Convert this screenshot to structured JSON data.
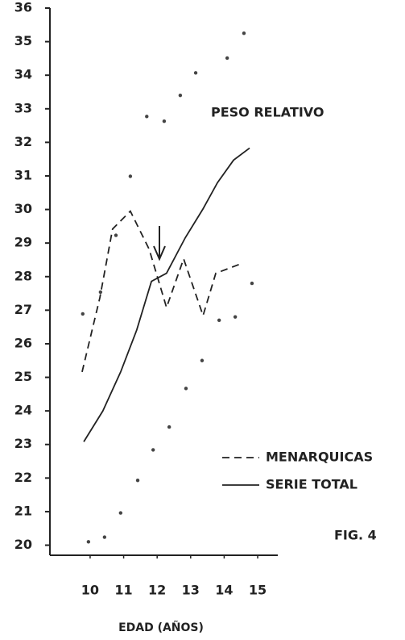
{
  "chart_data": {
    "type": "line",
    "annotation": "PESO RELATIVO",
    "figure_label": "FIG. 4",
    "xlabel": "EDAD (AÑOS)",
    "xlim": [
      8.8,
      15.6
    ],
    "xticks": [
      10,
      11,
      12,
      13,
      14,
      15
    ],
    "ylim": [
      19.7,
      36
    ],
    "yticks": [
      20,
      21,
      22,
      23,
      24,
      25,
      26,
      27,
      28,
      29,
      30,
      31,
      32,
      33,
      34,
      35,
      36
    ],
    "legend": "lower right",
    "series": [
      {
        "name": "MENARQUICAS",
        "style": "dashed",
        "color": "#222222",
        "x": [
          9.76,
          10.29,
          10.67,
          11.2,
          11.76,
          12.28,
          12.79,
          13.37,
          13.75,
          14.52
        ],
        "values": [
          25.16,
          27.37,
          29.42,
          29.95,
          28.82,
          27.08,
          28.53,
          26.84,
          28.1,
          28.39
        ]
      },
      {
        "name": "SERIE TOTAL",
        "style": "solid",
        "color": "#222222",
        "x": [
          9.81,
          10.38,
          10.91,
          11.39,
          11.83,
          12.28,
          12.84,
          13.37,
          13.8,
          14.28,
          14.76
        ],
        "values": [
          23.08,
          24.0,
          25.16,
          26.41,
          27.86,
          28.1,
          29.16,
          30.02,
          30.8,
          31.47,
          31.83
        ]
      },
      {
        "style": "dots",
        "color": "#444444",
        "x": [
          9.78,
          10.31,
          10.77,
          11.2,
          11.69,
          12.21,
          12.69,
          13.15,
          14.09,
          14.59
        ],
        "values": [
          26.89,
          27.54,
          29.23,
          30.99,
          32.77,
          32.63,
          33.4,
          34.07,
          34.51,
          35.25
        ]
      },
      {
        "style": "dots",
        "color": "#444444",
        "x": [
          9.95,
          10.43,
          10.91,
          11.42,
          11.88,
          12.36,
          12.86,
          13.34,
          13.85,
          14.33,
          14.83
        ],
        "values": [
          20.1,
          20.24,
          20.96,
          21.93,
          22.84,
          23.52,
          24.67,
          25.5,
          26.7,
          26.8,
          27.8
        ]
      }
    ]
  }
}
